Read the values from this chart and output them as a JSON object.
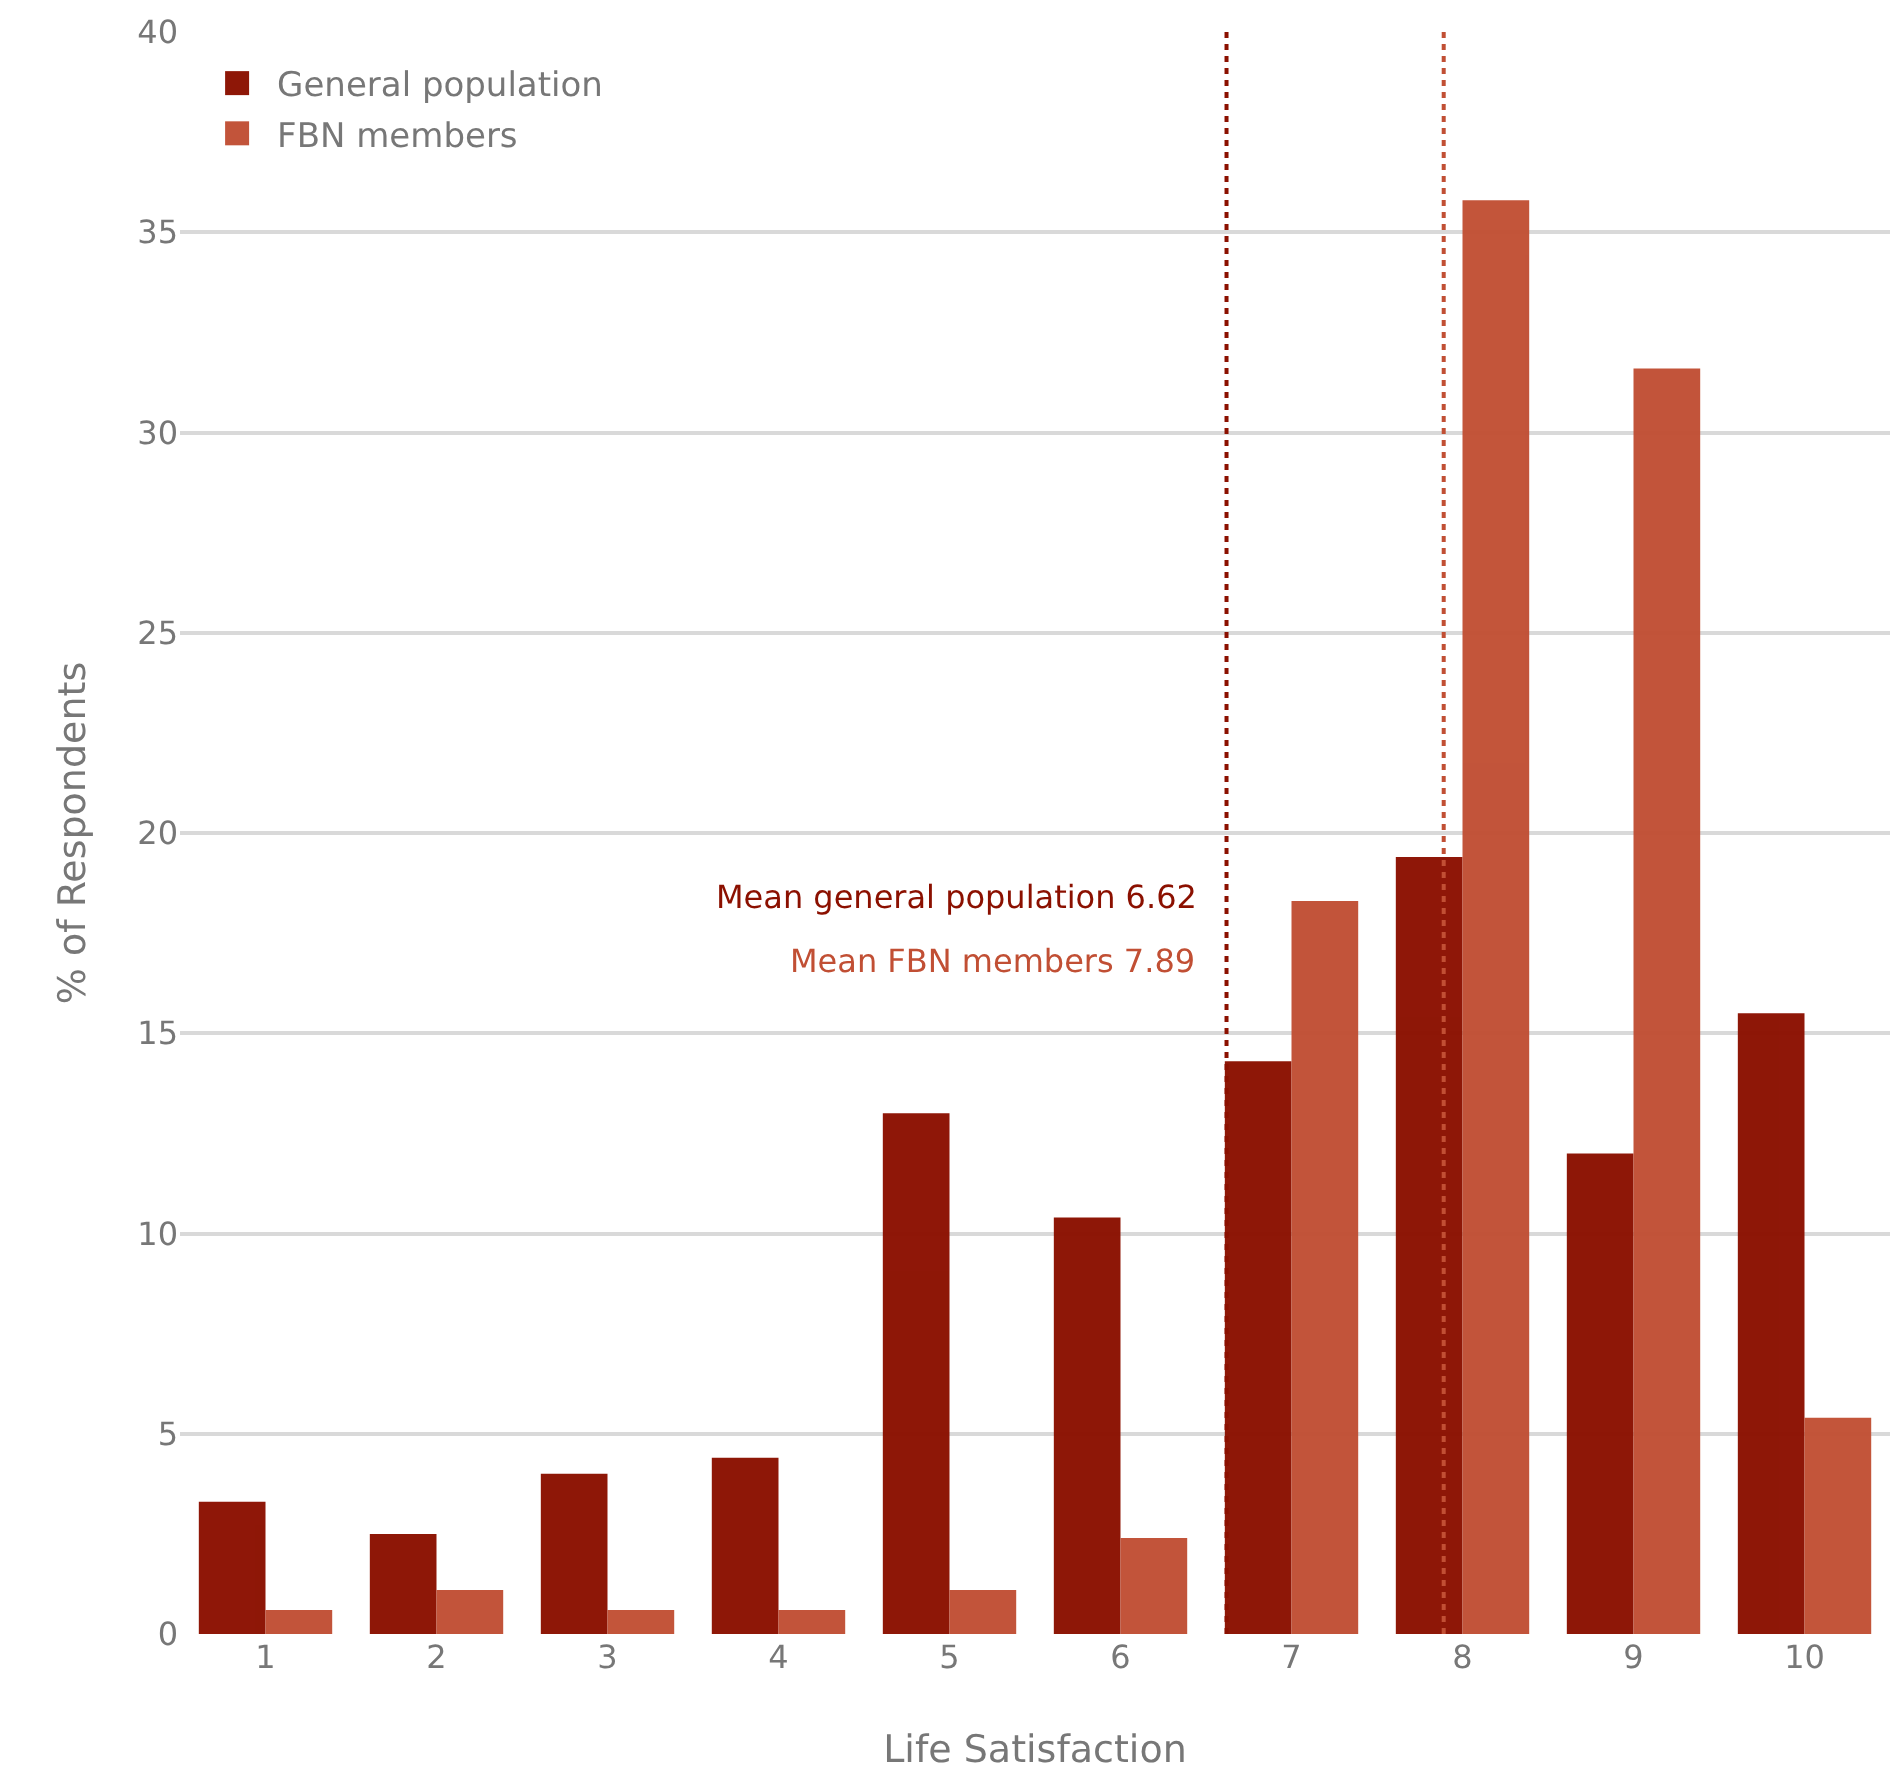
{
  "chart_data": {
    "type": "bar",
    "xlabel": "Life Satisfaction",
    "ylabel": "% of Respondents",
    "x": [
      1,
      2,
      3,
      4,
      5,
      6,
      7,
      8,
      9,
      10
    ],
    "series": [
      {
        "name": "General population",
        "color": "#8b1000",
        "values": [
          3.3,
          2.5,
          4.0,
          4.4,
          13.0,
          10.4,
          14.3,
          19.4,
          12.0,
          15.5
        ]
      },
      {
        "name": "FBN members",
        "color": "#c14f34",
        "values": [
          0.6,
          1.1,
          0.6,
          0.6,
          1.1,
          2.4,
          18.3,
          35.8,
          31.6,
          5.4
        ]
      }
    ],
    "xlim": [
      0.5,
      10.5
    ],
    "xticks": [
      1,
      2,
      3,
      4,
      5,
      6,
      7,
      8,
      9,
      10
    ],
    "ylim": [
      0,
      40
    ],
    "yticks": [
      0,
      5,
      10,
      15,
      20,
      25,
      30,
      35,
      40
    ],
    "ref_lines": [
      {
        "axis": "x",
        "value": 6.62,
        "label": "Mean general population 6.62",
        "color": "#8b1000",
        "line_style": "dotted"
      },
      {
        "axis": "x",
        "value": 7.89,
        "label": "Mean FBN members 7.89",
        "color": "#c14f34",
        "line_style": "dotted"
      }
    ],
    "grid": "y",
    "legend": "top left"
  }
}
